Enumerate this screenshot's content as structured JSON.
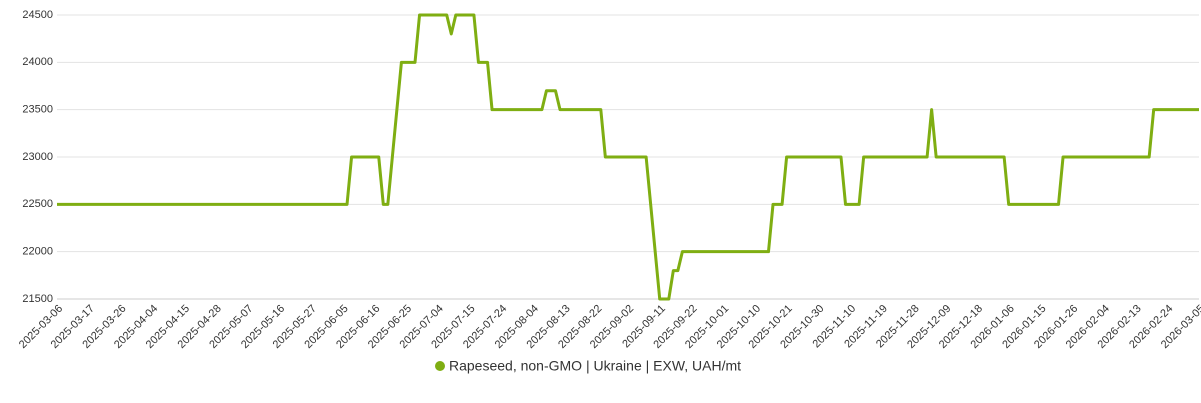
{
  "chart_data": {
    "type": "line",
    "categories": [
      "2025-03-06",
      null,
      null,
      null,
      null,
      null,
      null,
      "2025-03-17",
      null,
      null,
      null,
      null,
      null,
      null,
      "2025-03-26",
      null,
      null,
      null,
      null,
      null,
      null,
      "2025-04-04",
      null,
      null,
      null,
      null,
      null,
      null,
      "2025-04-15",
      null,
      null,
      null,
      null,
      null,
      null,
      "2025-04-28",
      null,
      null,
      null,
      null,
      null,
      null,
      "2025-05-07",
      null,
      null,
      null,
      null,
      null,
      null,
      "2025-05-16",
      null,
      null,
      null,
      null,
      null,
      null,
      "2025-05-27",
      null,
      null,
      null,
      null,
      null,
      null,
      "2025-06-05",
      null,
      null,
      null,
      null,
      null,
      null,
      "2025-06-16",
      null,
      null,
      null,
      null,
      null,
      null,
      "2025-06-25",
      null,
      null,
      null,
      null,
      null,
      null,
      "2025-07-04",
      null,
      null,
      null,
      null,
      null,
      null,
      "2025-07-15",
      null,
      null,
      null,
      null,
      null,
      null,
      "2025-07-24",
      null,
      null,
      null,
      null,
      null,
      null,
      "2025-08-04",
      null,
      null,
      null,
      null,
      null,
      null,
      "2025-08-13",
      null,
      null,
      null,
      null,
      null,
      null,
      "2025-08-22",
      null,
      null,
      null,
      null,
      null,
      null,
      "2025-09-02",
      null,
      null,
      null,
      null,
      null,
      null,
      "2025-09-11",
      null,
      null,
      null,
      null,
      null,
      null,
      "2025-09-22",
      null,
      null,
      null,
      null,
      null,
      null,
      "2025-10-01",
      null,
      null,
      null,
      null,
      null,
      null,
      "2025-10-10",
      null,
      null,
      null,
      null,
      null,
      null,
      "2025-10-21",
      null,
      null,
      null,
      null,
      null,
      null,
      "2025-10-30",
      null,
      null,
      null,
      null,
      null,
      null,
      "2025-11-10",
      null,
      null,
      null,
      null,
      null,
      null,
      "2025-11-19",
      null,
      null,
      null,
      null,
      null,
      null,
      "2025-11-28",
      null,
      null,
      null,
      null,
      null,
      null,
      "2025-12-09",
      null,
      null,
      null,
      null,
      null,
      null,
      "2025-12-18",
      null,
      null,
      null,
      null,
      null,
      null,
      "2026-01-06",
      null,
      null,
      null,
      null,
      null,
      null,
      "2026-01-15",
      null,
      null,
      null,
      null,
      null,
      null,
      "2026-01-26",
      null,
      null,
      null,
      null,
      null,
      null,
      "2026-02-04",
      null,
      null,
      null,
      null,
      null,
      null,
      "2026-02-13",
      null,
      null,
      null,
      null,
      null,
      null,
      "2026-02-24",
      null,
      null,
      null,
      null,
      null,
      null,
      "2026-03-05"
    ],
    "series": [
      {
        "name": "Rapeseed, non-GMO | Ukraine | EXW, UAH/mt",
        "color": "#7fae12",
        "values": [
          22500,
          22500,
          22500,
          22500,
          22500,
          22500,
          22500,
          22500,
          22500,
          22500,
          22500,
          22500,
          22500,
          22500,
          22500,
          22500,
          22500,
          22500,
          22500,
          22500,
          22500,
          22500,
          22500,
          22500,
          22500,
          22500,
          22500,
          22500,
          22500,
          22500,
          22500,
          22500,
          22500,
          22500,
          22500,
          22500,
          22500,
          22500,
          22500,
          22500,
          22500,
          22500,
          22500,
          22500,
          22500,
          22500,
          22500,
          22500,
          22500,
          22500,
          22500,
          22500,
          22500,
          22500,
          22500,
          22500,
          22500,
          22500,
          22500,
          22500,
          22500,
          22500,
          22500,
          22500,
          22500,
          23000,
          23000,
          23000,
          23000,
          23000,
          23000,
          23000,
          22500,
          22500,
          23000,
          23500,
          24000,
          24000,
          24000,
          24000,
          24500,
          24500,
          24500,
          24500,
          24500,
          24500,
          24500,
          24300,
          24500,
          24500,
          24500,
          24500,
          24500,
          24000,
          24000,
          24000,
          23500,
          23500,
          23500,
          23500,
          23500,
          23500,
          23500,
          23500,
          23500,
          23500,
          23500,
          23500,
          23700,
          23700,
          23700,
          23500,
          23500,
          23500,
          23500,
          23500,
          23500,
          23500,
          23500,
          23500,
          23500,
          23000,
          23000,
          23000,
          23000,
          23000,
          23000,
          23000,
          23000,
          23000,
          23000,
          22500,
          22000,
          21500,
          21500,
          21500,
          21800,
          21800,
          22000,
          22000,
          22000,
          22000,
          22000,
          22000,
          22000,
          22000,
          22000,
          22000,
          22000,
          22000,
          22000,
          22000,
          22000,
          22000,
          22000,
          22000,
          22000,
          22000,
          22500,
          22500,
          22500,
          23000,
          23000,
          23000,
          23000,
          23000,
          23000,
          23000,
          23000,
          23000,
          23000,
          23000,
          23000,
          23000,
          22500,
          22500,
          22500,
          22500,
          23000,
          23000,
          23000,
          23000,
          23000,
          23000,
          23000,
          23000,
          23000,
          23000,
          23000,
          23000,
          23000,
          23000,
          23000,
          23500,
          23000,
          23000,
          23000,
          23000,
          23000,
          23000,
          23000,
          23000,
          23000,
          23000,
          23000,
          23000,
          23000,
          23000,
          23000,
          23000,
          22500,
          22500,
          22500,
          22500,
          22500,
          22500,
          22500,
          22500,
          22500,
          22500,
          22500,
          22500,
          23000,
          23000,
          23000,
          23000,
          23000,
          23000,
          23000,
          23000,
          23000,
          23000,
          23000,
          23000,
          23000,
          23000,
          23000,
          23000,
          23000,
          23000,
          23000,
          23000,
          23500,
          23500,
          23500,
          23500,
          23500,
          23500,
          23500,
          23500,
          23500,
          23500,
          23500
        ]
      }
    ],
    "ylim": [
      21500,
      24500
    ],
    "yticks": [
      21500,
      22000,
      22500,
      23000,
      23500,
      24000,
      24500
    ],
    "grid": true,
    "legend": "bottom"
  }
}
